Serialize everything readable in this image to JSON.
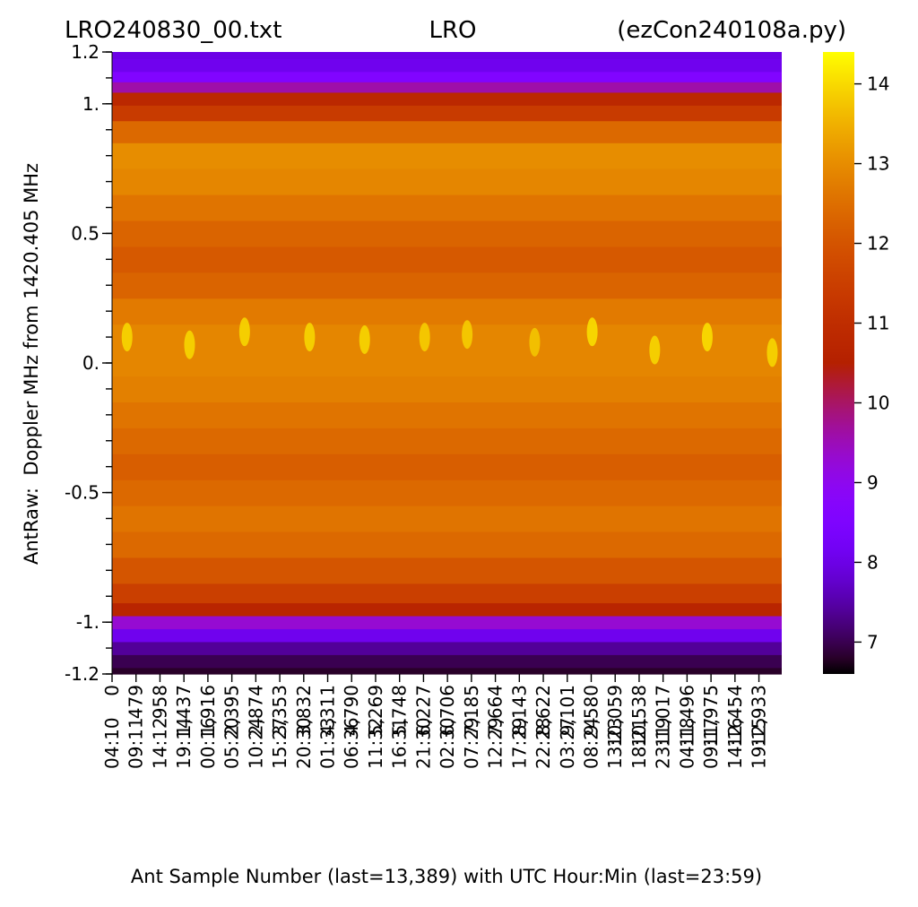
{
  "chart_data": {
    "type": "heatmap",
    "title_left": "LRO240830_00.txt",
    "title_center": "LRO",
    "title_right": "(ezCon240108a.py)",
    "ylabel": "AntRaw:  Doppler MHz from 1420.405 MHz",
    "xlabel": "Ant Sample Number (last=13,389) with UTC Hour:Min (last=23:59)",
    "ylim": [
      -1.2,
      1.2
    ],
    "y_ticks": [
      {
        "value": 1.2,
        "label": "1.2"
      },
      {
        "value": 1.0,
        "label": "1."
      },
      {
        "value": 0.5,
        "label": "0.5"
      },
      {
        "value": 0.0,
        "label": "0."
      },
      {
        "value": -0.5,
        "label": "-0.5"
      },
      {
        "value": -1.0,
        "label": "-1."
      },
      {
        "value": -1.2,
        "label": "-1.2"
      }
    ],
    "x_range": [
      0,
      13389
    ],
    "x_ticks_samples": [
      "0",
      "479",
      "958",
      "1,437",
      "1,916",
      "2,395",
      "2,874",
      "3,353",
      "3,832",
      "4,311",
      "4,790",
      "5,269",
      "5,748",
      "6,227",
      "6,706",
      "7,185",
      "7,664",
      "8,143",
      "8,622",
      "9,101",
      "9,580",
      "10,059",
      "10,538",
      "11,017",
      "11,496",
      "11,975",
      "12,454",
      "12,933"
    ],
    "x_ticks_utc": [
      "04:10",
      "09:11",
      "14:12",
      "19:14",
      "00:16",
      "05:20",
      "10:24",
      "15:27",
      "20:30",
      "01:33",
      "06:36",
      "11:32",
      "16:31",
      "21:30",
      "02:30",
      "07:29",
      "12:29",
      "17:29",
      "22:28",
      "03:27",
      "08:24",
      "13:23",
      "18:21",
      "23:19",
      "04:18",
      "09:17",
      "14:16",
      "19:15"
    ],
    "colorbar": {
      "colormap": "gnuplot",
      "range": [
        6.6,
        14.4
      ],
      "ticks": [
        7,
        8,
        9,
        10,
        11,
        12,
        13,
        14
      ]
    },
    "spectrum_profile": [
      {
        "mhz": -1.2,
        "value": 6.8
      },
      {
        "mhz": -1.15,
        "value": 7.0
      },
      {
        "mhz": -1.1,
        "value": 7.4
      },
      {
        "mhz": -1.05,
        "value": 8.1
      },
      {
        "mhz": -1.0,
        "value": 9.3
      },
      {
        "mhz": -0.95,
        "value": 10.7
      },
      {
        "mhz": -0.9,
        "value": 11.5
      },
      {
        "mhz": -0.8,
        "value": 12.0
      },
      {
        "mhz": -0.7,
        "value": 12.4
      },
      {
        "mhz": -0.6,
        "value": 12.6
      },
      {
        "mhz": -0.5,
        "value": 12.4
      },
      {
        "mhz": -0.4,
        "value": 12.2
      },
      {
        "mhz": -0.3,
        "value": 12.4
      },
      {
        "mhz": -0.2,
        "value": 12.6
      },
      {
        "mhz": -0.1,
        "value": 12.8
      },
      {
        "mhz": 0.0,
        "value": 12.9
      },
      {
        "mhz": 0.1,
        "value": 12.9
      },
      {
        "mhz": 0.2,
        "value": 12.7
      },
      {
        "mhz": 0.3,
        "value": 12.3
      },
      {
        "mhz": 0.4,
        "value": 12.1
      },
      {
        "mhz": 0.5,
        "value": 12.3
      },
      {
        "mhz": 0.6,
        "value": 12.6
      },
      {
        "mhz": 0.7,
        "value": 12.9
      },
      {
        "mhz": 0.8,
        "value": 13.0
      },
      {
        "mhz": 0.9,
        "value": 12.4
      },
      {
        "mhz": 0.97,
        "value": 11.4
      },
      {
        "mhz": 1.02,
        "value": 10.8
      },
      {
        "mhz": 1.07,
        "value": 9.6
      },
      {
        "mhz": 1.1,
        "value": 8.6
      },
      {
        "mhz": 1.15,
        "value": 8.1
      },
      {
        "mhz": 1.2,
        "value": 8.0
      }
    ],
    "hydrogen_line_peaks": [
      {
        "sample": 300,
        "mhz": 0.1,
        "value": 14.0
      },
      {
        "sample": 1550,
        "mhz": 0.07,
        "value": 14.0
      },
      {
        "sample": 2650,
        "mhz": 0.12,
        "value": 14.0
      },
      {
        "sample": 3950,
        "mhz": 0.1,
        "value": 14.0
      },
      {
        "sample": 5050,
        "mhz": 0.09,
        "value": 14.0
      },
      {
        "sample": 6250,
        "mhz": 0.1,
        "value": 13.9
      },
      {
        "sample": 7100,
        "mhz": 0.11,
        "value": 13.9
      },
      {
        "sample": 8450,
        "mhz": 0.08,
        "value": 13.8
      },
      {
        "sample": 9600,
        "mhz": 0.12,
        "value": 14.1
      },
      {
        "sample": 10850,
        "mhz": 0.05,
        "value": 14.0
      },
      {
        "sample": 11900,
        "mhz": 0.1,
        "value": 14.1
      },
      {
        "sample": 13200,
        "mhz": 0.04,
        "value": 14.0
      }
    ]
  }
}
